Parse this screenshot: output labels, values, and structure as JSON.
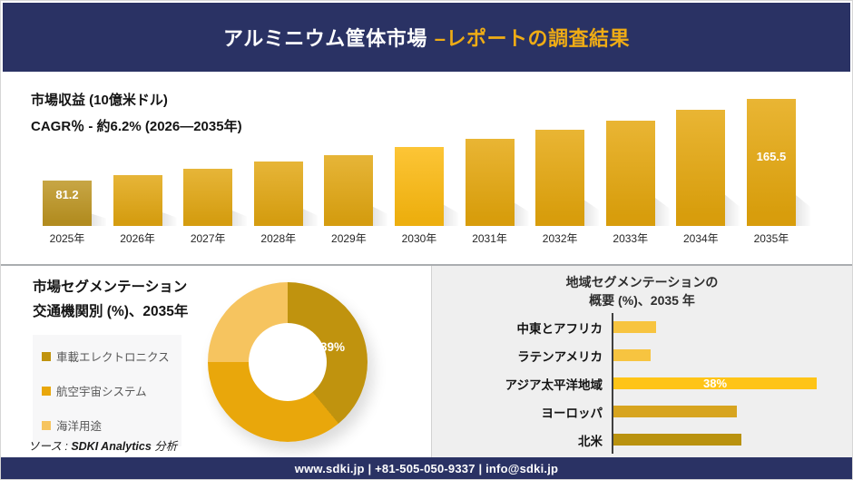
{
  "header": {
    "title_main": "アルミニウム筐体市場",
    "title_accent": "–レポートの調査結果"
  },
  "theme": {
    "navy": "#2a3264",
    "accent-gold": "#efac15",
    "panel-gray": "#efefef",
    "legend-bg": "#f7f7f8"
  },
  "chart_data": [
    {
      "id": "revenue_by_year",
      "type": "bar",
      "title": "市場収益 (10億米ドル)",
      "subtitle": "CAGR％ - 約6.2% (2026―2035年)",
      "categories": [
        "2025年",
        "2026年",
        "2027年",
        "2028年",
        "2029年",
        "2030年",
        "2031年",
        "2032年",
        "2033年",
        "2034年",
        "2035年"
      ],
      "values": [
        81.2,
        87.2,
        93.6,
        100.5,
        107.9,
        115.9,
        124.4,
        133.6,
        143.4,
        154.0,
        165.5
      ],
      "value_labels": [
        "81.2",
        null,
        null,
        null,
        null,
        null,
        null,
        null,
        null,
        null,
        "165.5"
      ],
      "labeled_note": "only 2025 (81.2) and 2035 (165.5) are labeled; intermediate values estimated from CAGR trend",
      "ylim": [
        0,
        170
      ],
      "grid": false,
      "colors": [
        "#bd9522",
        "#e2a712",
        "#e2a712",
        "#e2a712",
        "#e2a712",
        "#fcba10",
        "#e5a70d",
        "#e5a70d",
        "#e5a70d",
        "#e5a70d",
        "#e5a70d"
      ]
    },
    {
      "id": "transport_segmentation",
      "type": "pie",
      "title_line1": "市場セグメンテーション",
      "title_line2": "交通機関別 (%)、2035年",
      "labels": [
        "車載エレクトロニクス",
        "航空宇宙システム",
        "海洋用途"
      ],
      "values": [
        39,
        36,
        25
      ],
      "value_labels": [
        "39%",
        null,
        null
      ],
      "colors": [
        "#c0930e",
        "#e9a70b",
        "#f6c45f"
      ],
      "legend_position": "left",
      "donut": true
    },
    {
      "id": "region_overview",
      "type": "bar",
      "orientation": "horizontal",
      "title_line1": "地域セグメンテーションの",
      "title_line2": "概要 (%)、2035 年",
      "categories": [
        "中東とアフリカ",
        "ラテンアメリカ",
        "アジア太平洋地域",
        "ヨーロッパ",
        "北米"
      ],
      "values": [
        8,
        7,
        38,
        23,
        24
      ],
      "value_labels": [
        null,
        null,
        "38%",
        null,
        null
      ],
      "labeled_note": "only アジア太平洋地域 (38%) is labeled; other values estimated from bar lengths",
      "xlim": [
        0,
        40
      ],
      "grid": false,
      "colors": [
        "#f7c440",
        "#f7c440",
        "#fec417",
        "#d7a41f",
        "#b9920f"
      ]
    }
  ],
  "source": {
    "prefix": "ソース :",
    "brand": "SDKI Analytics",
    "suffix": "分析"
  },
  "footer": {
    "text": "www.sdki.jp | +81-505-050-9337 | info@sdki.jp"
  }
}
